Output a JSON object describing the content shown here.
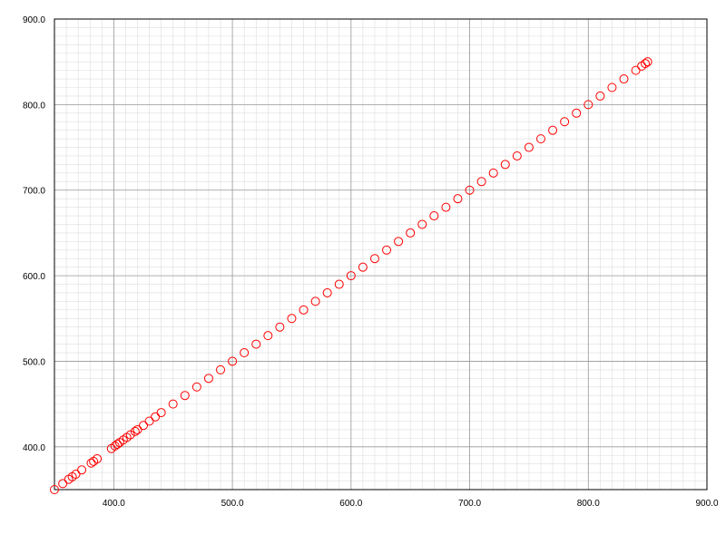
{
  "chart_data": {
    "type": "scatter",
    "title": "",
    "xlabel": "",
    "ylabel": "",
    "xlim": [
      350,
      900
    ],
    "ylim": [
      350,
      900
    ],
    "x_ticks": [
      "400.0",
      "500.0",
      "600.0",
      "700.0",
      "800.0",
      "900.0"
    ],
    "y_ticks": [
      "400.0",
      "500.0",
      "600.0",
      "700.0",
      "800.0",
      "900.0"
    ],
    "x_tick_values": [
      400,
      500,
      600,
      700,
      800,
      900
    ],
    "y_tick_values": [
      400,
      500,
      600,
      700,
      800,
      900
    ],
    "grid": {
      "major": true,
      "minor": true,
      "major_step": 100,
      "minor_step": 10
    },
    "legend": "none",
    "marker": "open-circle",
    "colors": {
      "series": "#ff0000",
      "major_grid": "#999999",
      "minor_grid": "#dddddd",
      "axis": "#000000"
    },
    "series": [
      {
        "x": [
          350.0,
          357.0,
          362.0,
          365.0,
          368.0,
          373.0,
          381.0,
          383.0,
          386.0,
          398.0,
          401.0,
          403.0,
          405.0,
          408.0,
          411.0,
          414.0,
          418.0,
          420.0,
          425.0,
          430.0,
          435.0,
          440.0,
          450.0,
          460.0,
          470.0,
          480.0,
          490.0,
          500.0,
          510.0,
          520.0,
          530.0,
          540.0,
          550.0,
          560.0,
          570.0,
          580.0,
          590.0,
          600.0,
          610.0,
          620.0,
          630.0,
          640.0,
          650.0,
          660.0,
          670.0,
          680.0,
          690.0,
          700.0,
          710.0,
          720.0,
          730.0,
          740.0,
          750.0,
          760.0,
          770.0,
          780.0,
          790.0,
          800.0,
          810.0,
          820.0,
          830.0,
          840.0,
          845.0,
          848.0,
          850.0
        ],
        "y": [
          350.0,
          357.0,
          362.0,
          365.0,
          368.0,
          373.0,
          381.0,
          383.0,
          386.0,
          398.0,
          401.0,
          403.0,
          405.0,
          408.0,
          411.0,
          414.0,
          418.0,
          420.0,
          425.0,
          430.0,
          435.0,
          440.0,
          450.0,
          460.0,
          470.0,
          480.0,
          490.0,
          500.0,
          510.0,
          520.0,
          530.0,
          540.0,
          550.0,
          560.0,
          570.0,
          580.0,
          590.0,
          600.0,
          610.0,
          620.0,
          630.0,
          640.0,
          650.0,
          660.0,
          670.0,
          680.0,
          690.0,
          700.0,
          710.0,
          720.0,
          730.0,
          740.0,
          750.0,
          760.0,
          770.0,
          780.0,
          790.0,
          800.0,
          810.0,
          820.0,
          830.0,
          840.0,
          845.0,
          848.0,
          850.0
        ]
      }
    ]
  }
}
